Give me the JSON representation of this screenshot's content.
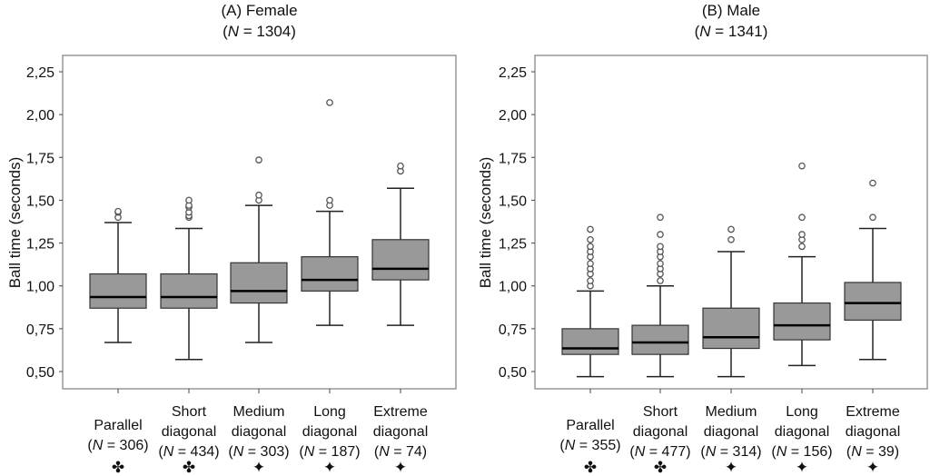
{
  "chart_data": [
    {
      "type": "box",
      "title": "(A) Female",
      "subtitle_n": "1304",
      "ylabel": "Ball time (seconds)",
      "ylim": [
        0.5,
        2.25
      ],
      "yticks": [
        "0,50",
        "0,75",
        "1,00",
        "1,25",
        "1,50",
        "1,75",
        "2,00",
        "2,25"
      ],
      "ytick_values": [
        0.5,
        0.75,
        1.0,
        1.25,
        1.5,
        1.75,
        2.0,
        2.25
      ],
      "categories": [
        {
          "name_line1": "Parallel",
          "name_line2": "",
          "n": "306",
          "marker": "✤",
          "whisker_low": 0.67,
          "q1": 0.87,
          "median": 0.935,
          "q3": 1.07,
          "whisker_high": 1.37,
          "outliers": [
            1.4,
            1.43,
            1.435
          ]
        },
        {
          "name_line1": "Short",
          "name_line2": "diagonal",
          "n": "434",
          "marker": "✤",
          "whisker_low": 0.57,
          "q1": 0.87,
          "median": 0.935,
          "q3": 1.07,
          "whisker_high": 1.335,
          "outliers": [
            1.4,
            1.41,
            1.43,
            1.46,
            1.47,
            1.5
          ]
        },
        {
          "name_line1": "Medium",
          "name_line2": "diagonal",
          "n": "303",
          "marker": "✦",
          "whisker_low": 0.67,
          "q1": 0.9,
          "median": 0.97,
          "q3": 1.135,
          "whisker_high": 1.47,
          "outliers": [
            1.5,
            1.53,
            1.735
          ]
        },
        {
          "name_line1": "Long",
          "name_line2": "diagonal",
          "n": "187",
          "marker": "✦",
          "whisker_low": 0.77,
          "q1": 0.97,
          "median": 1.035,
          "q3": 1.17,
          "whisker_high": 1.435,
          "outliers": [
            1.47,
            1.5,
            2.07
          ]
        },
        {
          "name_line1": "Extreme",
          "name_line2": "diagonal",
          "n": "74",
          "marker": "✦",
          "whisker_low": 0.77,
          "q1": 1.035,
          "median": 1.1,
          "q3": 1.27,
          "whisker_high": 1.57,
          "outliers": [
            1.67,
            1.7
          ]
        }
      ]
    },
    {
      "type": "box",
      "title": "(B) Male",
      "subtitle_n": "1341",
      "ylabel": "Ball time (seconds)",
      "ylim": [
        0.5,
        2.25
      ],
      "yticks": [
        "0,50",
        "0,75",
        "1,00",
        "1,25",
        "1,50",
        "1,75",
        "2,00",
        "2,25"
      ],
      "ytick_values": [
        0.5,
        0.75,
        1.0,
        1.25,
        1.5,
        1.75,
        2.0,
        2.25
      ],
      "categories": [
        {
          "name_line1": "Parallel",
          "name_line2": "",
          "n": "355",
          "marker": "✤",
          "whisker_low": 0.47,
          "q1": 0.6,
          "median": 0.635,
          "q3": 0.75,
          "whisker_high": 0.97,
          "outliers": [
            1.0,
            1.03,
            1.07,
            1.1,
            1.13,
            1.17,
            1.2,
            1.23,
            1.27,
            1.33
          ]
        },
        {
          "name_line1": "Short",
          "name_line2": "diagonal",
          "n": "477",
          "marker": "✤",
          "whisker_low": 0.47,
          "q1": 0.6,
          "median": 0.67,
          "q3": 0.77,
          "whisker_high": 1.0,
          "outliers": [
            1.03,
            1.07,
            1.1,
            1.13,
            1.17,
            1.2,
            1.23,
            1.3,
            1.4
          ]
        },
        {
          "name_line1": "Medium",
          "name_line2": "diagonal",
          "n": "314",
          "marker": "✦",
          "whisker_low": 0.47,
          "q1": 0.635,
          "median": 0.7,
          "q3": 0.87,
          "whisker_high": 1.2,
          "outliers": [
            1.27,
            1.33
          ]
        },
        {
          "name_line1": "Long",
          "name_line2": "diagonal",
          "n": "156",
          "marker": "✦",
          "whisker_low": 0.535,
          "q1": 0.685,
          "median": 0.77,
          "q3": 0.9,
          "whisker_high": 1.17,
          "outliers": [
            1.23,
            1.27,
            1.3,
            1.4,
            1.7
          ]
        },
        {
          "name_line1": "Extreme",
          "name_line2": "diagonal",
          "n": "39",
          "marker": "✦",
          "whisker_low": 0.57,
          "q1": 0.8,
          "median": 0.9,
          "q3": 1.02,
          "whisker_high": 1.335,
          "outliers": [
            1.4,
            1.6
          ]
        }
      ]
    }
  ],
  "colors": {
    "box_fill": "#999999",
    "line": "#222222",
    "frame": "#888888"
  }
}
